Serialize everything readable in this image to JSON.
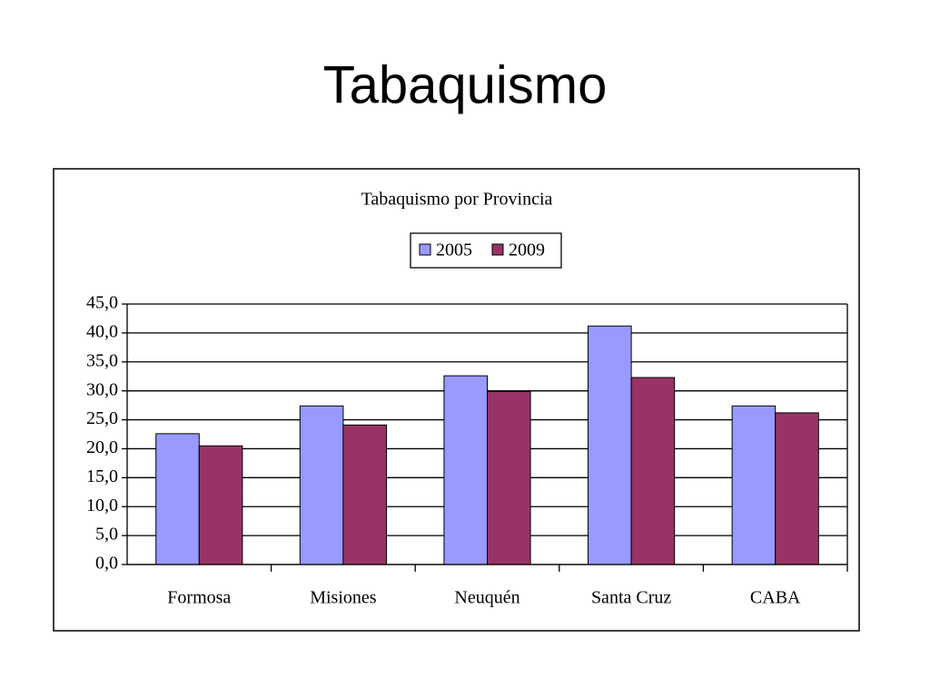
{
  "title": "Tabaquismo",
  "chart_data": {
    "type": "bar",
    "title": "Tabaquismo por Provincia",
    "categories": [
      "Formosa",
      "Misiones",
      "Neuquén",
      "Santa Cruz",
      "CABA"
    ],
    "series": [
      {
        "name": "2005",
        "color": "#9999ff",
        "values": [
          22.6,
          27.4,
          32.6,
          41.2,
          27.4
        ]
      },
      {
        "name": "2009",
        "color": "#993366",
        "values": [
          20.5,
          24.1,
          29.9,
          32.3,
          26.2
        ]
      }
    ],
    "ylim": [
      0,
      45
    ],
    "yticks": [
      {
        "value": 0,
        "label": "0,0"
      },
      {
        "value": 5,
        "label": "5,0"
      },
      {
        "value": 10,
        "label": "10,0"
      },
      {
        "value": 15,
        "label": "15,0"
      },
      {
        "value": 20,
        "label": "20,0"
      },
      {
        "value": 25,
        "label": "25,0"
      },
      {
        "value": 30,
        "label": "30,0"
      },
      {
        "value": 35,
        "label": "35,0"
      },
      {
        "value": 40,
        "label": "40,0"
      },
      {
        "value": 45,
        "label": "45,0"
      }
    ],
    "grid": true,
    "legend": "top"
  }
}
